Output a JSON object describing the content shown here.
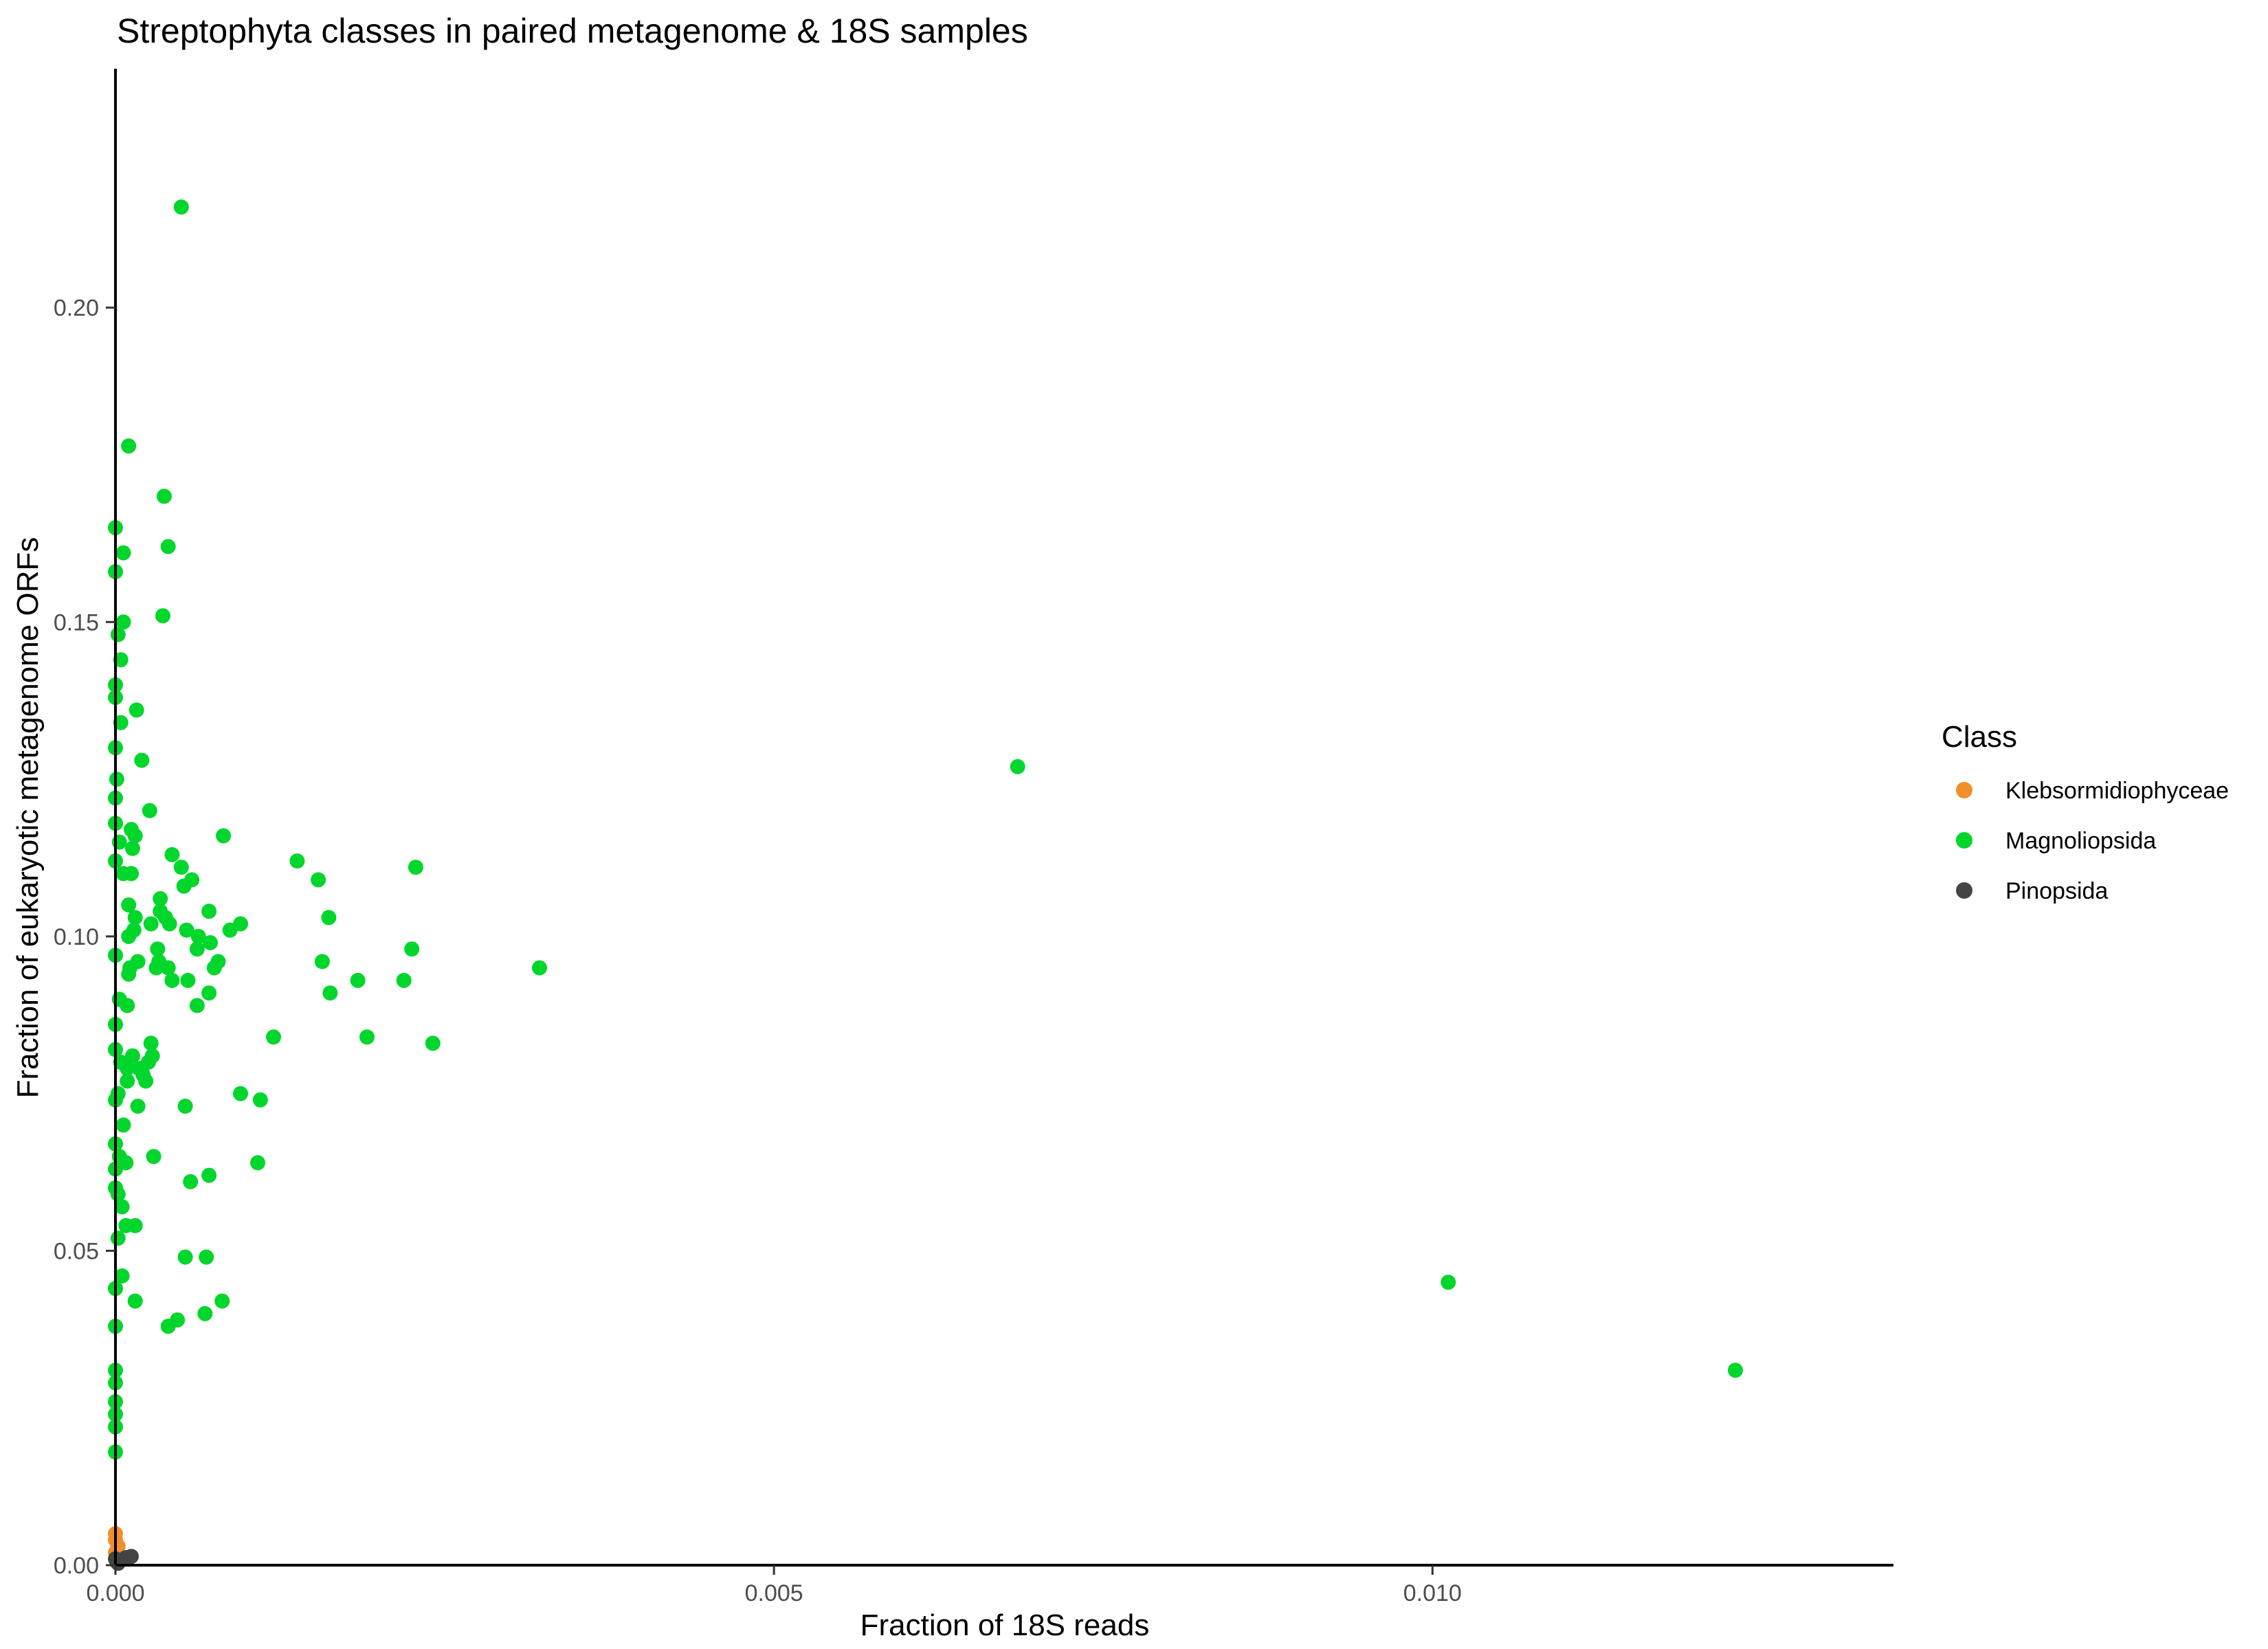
{
  "chart_data": {
    "type": "scatter",
    "title": "Streptophyta classes in paired metagenome & 18S samples",
    "xlabel": "Fraction of 18S reads",
    "ylabel": "Fraction of eukaryotic metagenome ORFs",
    "xlim": [
      0,
      0.0135
    ],
    "ylim": [
      0,
      0.238
    ],
    "x_ticks": [
      0,
      0.005,
      0.01
    ],
    "x_tick_labels": [
      "0.000",
      "0.005",
      "0.010"
    ],
    "y_ticks": [
      0,
      0.05,
      0.1,
      0.15,
      0.2
    ],
    "y_tick_labels": [
      "0.00",
      "0.05",
      "0.10",
      "0.15",
      "0.20"
    ],
    "grid": false,
    "legend": {
      "title": "Class",
      "position": "right",
      "entries": [
        "Klebsormidiophyceae",
        "Magnoliopsida",
        "Pinopsida"
      ]
    },
    "series": [
      {
        "name": "Klebsormidiophyceae",
        "color": "#f28e2b",
        "points": [
          [
            0.0,
            0.005
          ],
          [
            0.0,
            0.004
          ],
          [
            2e-05,
            0.003
          ],
          [
            0.0,
            0.002
          ],
          [
            3e-05,
            0.001
          ],
          [
            1e-05,
            0.0005
          ]
        ]
      },
      {
        "name": "Magnoliopsida",
        "color": "#00d62c",
        "points": [
          [
            0.0005,
            0.216
          ],
          [
            0.0001,
            0.178
          ],
          [
            0.00037,
            0.17
          ],
          [
            0.0004,
            0.162
          ],
          [
            6e-05,
            0.161
          ],
          [
            0.0,
            0.165
          ],
          [
            0.0,
            0.158
          ],
          [
            0.00036,
            0.151
          ],
          [
            6e-05,
            0.15
          ],
          [
            2e-05,
            0.148
          ],
          [
            4e-05,
            0.144
          ],
          [
            0.0,
            0.14
          ],
          [
            0.0,
            0.138
          ],
          [
            0.00016,
            0.136
          ],
          [
            4e-05,
            0.134
          ],
          [
            0.0,
            0.13
          ],
          [
            0.0002,
            0.128
          ],
          [
            1e-05,
            0.125
          ],
          [
            0.0,
            0.122
          ],
          [
            0.00026,
            0.12
          ],
          [
            0.0,
            0.118
          ],
          [
            0.00012,
            0.117
          ],
          [
            0.00015,
            0.116
          ],
          [
            3e-05,
            0.115
          ],
          [
            0.00013,
            0.114
          ],
          [
            0.00043,
            0.113
          ],
          [
            0.0005,
            0.111
          ],
          [
            0.0,
            0.112
          ],
          [
            6e-05,
            0.11
          ],
          [
            0.00012,
            0.11
          ],
          [
            0.00058,
            0.109
          ],
          [
            0.00052,
            0.108
          ],
          [
            0.00034,
            0.106
          ],
          [
            0.0001,
            0.105
          ],
          [
            0.00071,
            0.104
          ],
          [
            0.00034,
            0.104
          ],
          [
            0.00015,
            0.103
          ],
          [
            0.00038,
            0.103
          ],
          [
            0.00041,
            0.102
          ],
          [
            0.00027,
            0.102
          ],
          [
            0.00054,
            0.101
          ],
          [
            0.00014,
            0.101
          ],
          [
            0.0001,
            0.1
          ],
          [
            0.00063,
            0.1
          ],
          [
            0.00072,
            0.099
          ],
          [
            0.00032,
            0.098
          ],
          [
            0.00062,
            0.098
          ],
          [
            0.0,
            0.097
          ],
          [
            0.00017,
            0.096
          ],
          [
            0.00033,
            0.096
          ],
          [
            0.00031,
            0.095
          ],
          [
            0.00011,
            0.095
          ],
          [
            0.0004,
            0.095
          ],
          [
            0.00075,
            0.095
          ],
          [
            0.0001,
            0.094
          ],
          [
            0.00043,
            0.093
          ],
          [
            0.00055,
            0.093
          ],
          [
            0.00071,
            0.091
          ],
          [
            3e-05,
            0.09
          ],
          [
            9e-05,
            0.089
          ],
          [
            0.00062,
            0.089
          ],
          [
            0.0,
            0.086
          ],
          [
            0.00027,
            0.083
          ],
          [
            0.00028,
            0.081
          ],
          [
            0.0,
            0.082
          ],
          [
            4e-05,
            0.08
          ],
          [
            0.00013,
            0.081
          ],
          [
            0.00018,
            0.079
          ],
          [
            0.00025,
            0.08
          ],
          [
            9e-05,
            0.079
          ],
          [
            0.00021,
            0.078
          ],
          [
            0.00023,
            0.077
          ],
          [
            9e-05,
            0.077
          ],
          [
            2e-05,
            0.075
          ],
          [
            0.0,
            0.074
          ],
          [
            0.00017,
            0.073
          ],
          [
            0.00053,
            0.073
          ],
          [
            6e-05,
            0.07
          ],
          [
            0.0,
            0.067
          ],
          [
            0.00029,
            0.065
          ],
          [
            3e-05,
            0.065
          ],
          [
            8e-05,
            0.064
          ],
          [
            0.0,
            0.063
          ],
          [
            0.00071,
            0.062
          ],
          [
            0.00057,
            0.061
          ],
          [
            0.0,
            0.06
          ],
          [
            2e-05,
            0.059
          ],
          [
            5e-05,
            0.057
          ],
          [
            8e-05,
            0.054
          ],
          [
            0.00015,
            0.054
          ],
          [
            2e-05,
            0.052
          ],
          [
            0.00053,
            0.049
          ],
          [
            0.00069,
            0.049
          ],
          [
            5e-05,
            0.046
          ],
          [
            0.0,
            0.044
          ],
          [
            0.00015,
            0.042
          ],
          [
            0.00081,
            0.042
          ],
          [
            0.00068,
            0.04
          ],
          [
            0.00047,
            0.039
          ],
          [
            0.0004,
            0.038
          ],
          [
            0.0,
            0.038
          ],
          [
            0.0,
            0.031
          ],
          [
            0.0,
            0.029
          ],
          [
            0.0,
            0.026
          ],
          [
            0.0,
            0.024
          ],
          [
            0.0,
            0.022
          ],
          [
            0.0,
            0.018
          ],
          [
            0.00082,
            0.116
          ],
          [
            0.00138,
            0.112
          ],
          [
            0.00154,
            0.109
          ],
          [
            0.00162,
            0.103
          ],
          [
            0.00095,
            0.102
          ],
          [
            0.00087,
            0.101
          ],
          [
            0.00078,
            0.096
          ],
          [
            0.00157,
            0.096
          ],
          [
            0.00184,
            0.093
          ],
          [
            0.00163,
            0.091
          ],
          [
            0.0012,
            0.084
          ],
          [
            0.00191,
            0.084
          ],
          [
            0.00095,
            0.075
          ],
          [
            0.0011,
            0.074
          ],
          [
            0.00108,
            0.064
          ],
          [
            0.00228,
            0.111
          ],
          [
            0.00225,
            0.098
          ],
          [
            0.00219,
            0.093
          ],
          [
            0.00241,
            0.083
          ],
          [
            0.00322,
            0.095
          ],
          [
            0.00685,
            0.127
          ],
          [
            0.01012,
            0.045
          ],
          [
            0.0123,
            0.031
          ]
        ]
      },
      {
        "name": "Pinopsida",
        "color": "#444444",
        "points": [
          [
            0.0,
            0.001
          ],
          [
            4e-05,
            0.0008
          ],
          [
            8e-05,
            0.0012
          ],
          [
            0.00012,
            0.0014
          ],
          [
            2e-05,
            0.0003
          ]
        ]
      }
    ]
  }
}
